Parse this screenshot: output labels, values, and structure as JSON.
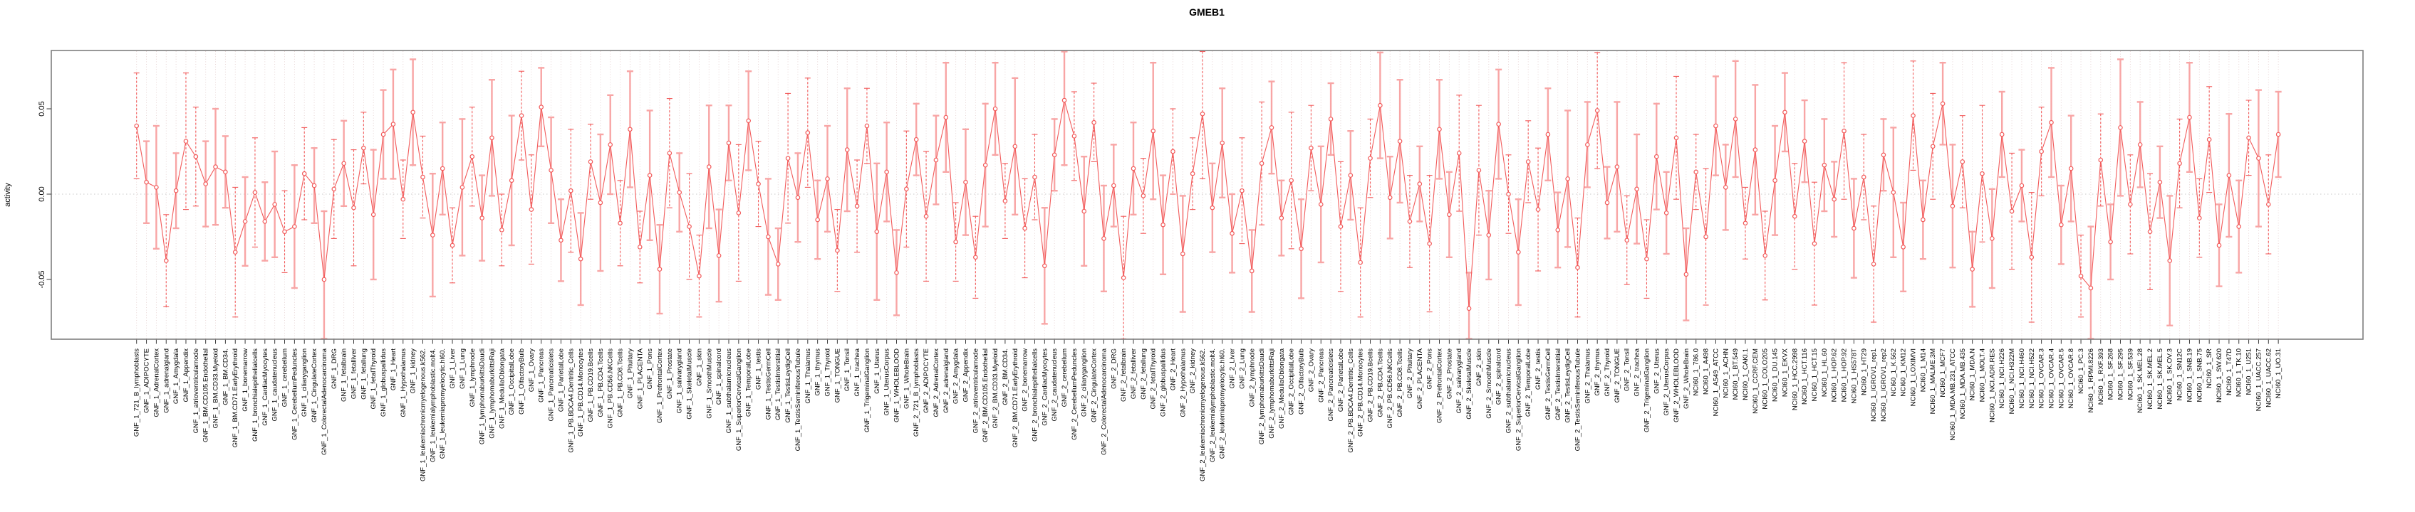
{
  "chart_data": {
    "type": "line",
    "title": "GMEB1",
    "ylabel": "activity",
    "xlabel": "",
    "ylim": [
      -0.085,
      0.085
    ],
    "yticks": [
      {
        "value": 0.05,
        "label": "0.05"
      },
      {
        "value": 0.0,
        "label": "0.00"
      },
      {
        "value": -0.05,
        "label": "-0.05"
      }
    ],
    "zero_reference_line": 0,
    "grid": {
      "vertical_dotted_per_category": true,
      "horizontal_dotted_at_zero": true
    },
    "legend_position": "none",
    "marker": "open-circle",
    "n_points": 218,
    "x_label_groups": [
      {
        "prefix": "GNF_1_",
        "source": "gnf_tissues"
      },
      {
        "prefix": "GNF_2_",
        "source": "gnf_tissues"
      },
      {
        "prefix": "NCI60_1_",
        "source": "nci60_lines"
      }
    ],
    "gnf_tissues": [
      "721_B_lymphoblasts",
      "ADIPOCYTE",
      "AdrenalCortex",
      "adrenalgland",
      "Amygdala",
      "Appendix",
      "atrioventricularnode",
      "BM.CD105.Endothelial",
      "BM.CD33.Myeloid",
      "BM.CD34.",
      "BM.CD71.EarlyErythroid",
      "bonemarrow",
      "bronchialepithelialcells",
      "CardiacMyocytes",
      "caudatenucleus",
      "cerebellum",
      "CerebellumPeduncles",
      "ciliaryganglion",
      "CingulateCortex",
      "ColorectalAdenocarcinoma",
      "DRG",
      "fetalbrain",
      "fetalliver",
      "fetallung",
      "fetalThyroid",
      "globuspallidus",
      "Heart",
      "Hypothalamus",
      "kidney",
      "leukemiachronicmyelogenous.k562.",
      "leukemialymphoblastic.molt4.",
      "leukemiapromyelocytic.hl60.",
      "Liver",
      "Lung",
      "lymphnode",
      "lymphomaburkittsDaudi",
      "lymphomaburkittsRaji",
      "MedullaOblongata",
      "OccipitalLobe",
      "OlfactoryBulb",
      "Ovary",
      "Pancreas",
      "Pancreaticislets",
      "ParietalLobe",
      "PB.BDCA4.Dentritic_Cells",
      "PB.CD14.Monocytes",
      "PB.CD19.Bcells",
      "PB.CD4.Tcells",
      "PB.CD56.NKCells",
      "PB.CD8.Tcells",
      "Pituitary",
      "PLACENTA",
      "Pons",
      "PrefrontalCortex",
      "Prostate",
      "salivarygland",
      "SkeletalMuscle",
      "skin",
      "SmoothMuscle",
      "spinalcord",
      "subthalamicnucleus",
      "SuperiorCervicalGanglion",
      "TemporalLobe",
      "testis",
      "TestisGermCell",
      "TestisInterstitial",
      "TestisLeydigCell",
      "TestisSeminiferousTubule",
      "Thalamus",
      "thymus",
      "Thyroid",
      "TONGUE",
      "Tonsil",
      "trachea",
      "TrigeminalGanglion",
      "Uterus",
      "UterusCorpus",
      "WHOLEBLOOD",
      "WholeBrain"
    ],
    "nci60_lines": [
      "786.0",
      "A498",
      "A549_ATCC",
      "ACHN",
      "BT.549",
      "CAKI.1",
      "CCRF.CEM",
      "COLO205",
      "DU.145",
      "EKVX",
      "HCC.2998",
      "HCT.116",
      "HCT.15",
      "HL.60",
      "HOP.62",
      "HOP.92",
      "HS578T",
      "HT29",
      "IGROV1_rep1",
      "IGROV1_rep2",
      "K.562",
      "KM12",
      "LOXIMVI",
      "M14",
      "MALME.3M",
      "MCF7",
      "MDA.MB.231_ATCC",
      "MDA.MB.435",
      "MDA.N",
      "MOLT.4",
      "NCI.ADR.RES",
      "NCI.H226",
      "NCI.H322M",
      "NCI.H460",
      "NCI.H522",
      "OVCAR.3",
      "OVCAR.4",
      "OVCAR.5",
      "OVCAR.8",
      "PC.3",
      "RPMI.8226",
      "RXF.393",
      "SF.268",
      "SF.295",
      "SF.539",
      "SK.MEL.28",
      "SK.MEL.2",
      "SK.MEL.5",
      "SK.OV.3",
      "SN12C",
      "SNB.19",
      "SNB.75",
      "SR",
      "SW.620",
      "T47D",
      "TK.10",
      "U251",
      "UACC.257",
      "UACC.62",
      "UO.31"
    ],
    "values": [
      0.04,
      0.007,
      0.004,
      -0.039,
      0.002,
      0.031,
      0.022,
      0.006,
      0.016,
      0.013,
      -0.034,
      -0.016,
      0.001,
      -0.016,
      -0.006,
      -0.022,
      -0.019,
      0.012,
      0.005,
      -0.05,
      0.003,
      0.018,
      -0.008,
      0.027,
      -0.012,
      0.035,
      0.041,
      -0.003,
      0.048,
      0.01,
      -0.024,
      0.015,
      -0.03,
      0.004,
      0.022,
      -0.014,
      0.033,
      -0.021,
      0.008,
      0.046,
      -0.009,
      0.051,
      0.014,
      -0.027,
      0.002,
      -0.038,
      0.019,
      -0.005,
      0.029,
      -0.017,
      0.038,
      -0.031,
      0.011,
      -0.044,
      0.024,
      0.001,
      -0.019,
      -0.048,
      0.016,
      -0.036,
      0.03,
      -0.011,
      0.043,
      0.006,
      -0.025,
      -0.041,
      0.021,
      -0.002,
      0.036,
      -0.015,
      0.009,
      -0.033,
      0.026,
      -0.007,
      0.04,
      -0.022,
      0.013,
      -0.046,
      0.003,
      0.032,
      -0.013,
      0.02,
      0.045,
      -0.028,
      0.007,
      -0.037,
      0.017,
      0.05,
      -0.004,
      0.028,
      -0.02,
      0.01,
      -0.042,
      0.023,
      0.055,
      0.034,
      -0.01,
      0.042,
      -0.026,
      0.005,
      -0.049,
      0.015,
      -0.001,
      0.037,
      -0.018,
      0.025,
      -0.035,
      0.012,
      0.047,
      -0.008,
      0.03,
      -0.023,
      0.002,
      -0.045,
      0.018,
      0.039,
      -0.014,
      0.008,
      -0.032,
      0.027,
      -0.006,
      0.044,
      -0.019,
      0.011,
      -0.04,
      0.021,
      0.052,
      -0.002,
      0.031,
      -0.016,
      0.006,
      -0.029,
      0.038,
      -0.012,
      0.024,
      -0.067,
      0.014,
      -0.024,
      0.041,
      0.0,
      -0.034,
      0.019,
      -0.009,
      0.035,
      -0.021,
      0.009,
      -0.043,
      0.029,
      0.049,
      -0.005,
      0.016,
      -0.027,
      0.003,
      -0.038,
      0.022,
      -0.011,
      0.033,
      -0.047,
      0.013,
      -0.025,
      0.04,
      0.004,
      0.044,
      -0.017,
      0.026,
      -0.036,
      0.008,
      0.048,
      -0.013,
      0.031,
      -0.029,
      0.017,
      -0.003,
      0.037,
      -0.02,
      0.01,
      -0.041,
      0.023,
      0.001,
      -0.031,
      0.046,
      -0.015,
      0.028,
      0.053,
      -0.007,
      0.019,
      -0.044,
      0.012,
      -0.026,
      0.035,
      -0.01,
      0.005,
      -0.037,
      0.025,
      0.042,
      -0.018,
      0.015,
      -0.048,
      -0.055,
      0.02,
      -0.028,
      0.039,
      -0.006,
      0.029,
      -0.022,
      0.007,
      -0.039,
      0.018,
      0.045,
      -0.014,
      0.032,
      -0.03,
      0.011,
      -0.019,
      0.033,
      0.021,
      -0.006,
      0.035
    ],
    "errors_halfwidth_cycle": [
      0.031,
      0.024,
      0.036,
      0.027,
      0.022,
      0.04,
      0.029,
      0.025,
      0.034,
      0.021,
      0.038,
      0.026,
      0.032,
      0.023
    ],
    "errorbar_style_cycle": [
      1,
      0,
      0,
      1,
      0,
      1,
      1,
      0,
      0,
      0,
      1,
      0,
      1,
      0,
      0,
      1,
      0
    ],
    "colors": {
      "line": "#f25b5b",
      "marker_stroke": "#f25b5b",
      "marker_fill": "#ffffff",
      "errorbar_solid": "#f8a5a5",
      "errorbar_dashed": "#f25b5b",
      "grid_vertical": "#e6d2d2",
      "zero_line": "#c9c9c9",
      "box": "#7f7f7f",
      "tick": "#3c3c3c",
      "axis_text": "#000000"
    }
  }
}
